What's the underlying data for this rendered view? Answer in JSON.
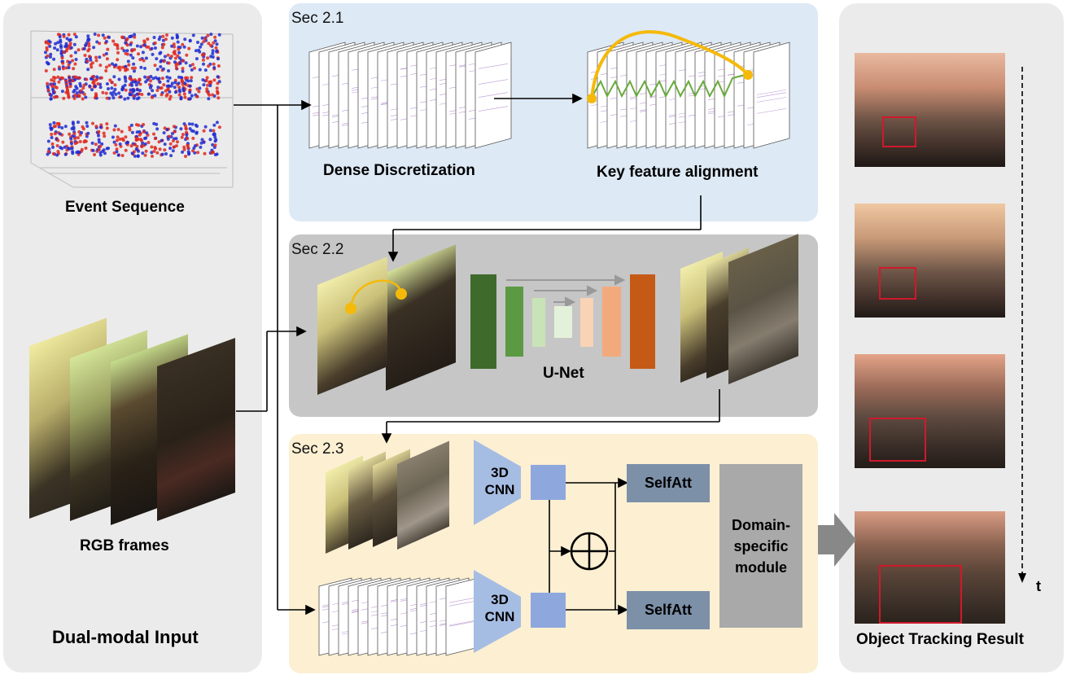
{
  "left_panel": {
    "event_label": "Event Sequence",
    "rgb_label": "RGB frames",
    "title": "Dual-modal Input"
  },
  "sec21": {
    "label": "Sec 2.1",
    "dense_label": "Dense Discretization",
    "align_label": "Key feature alignment"
  },
  "sec22": {
    "label": "Sec 2.2",
    "unet_label": "U-Net"
  },
  "sec23": {
    "label": "Sec 2.3",
    "cnn_top": "3D CNN",
    "cnn_bottom": "3D CNN",
    "selfatt_top": "SelfAtt",
    "selfatt_bottom": "SelfAtt",
    "domain_label": "Domain-specific module"
  },
  "right_panel": {
    "title": "Object Tracking Result",
    "time_label": "t"
  },
  "colors": {
    "panel_gray": "#ebebeb",
    "sec21_bg": "#dde9f5",
    "sec22_bg": "#c6c6c6",
    "sec23_bg": "#fcefd2",
    "unet_dark_green": "#3e6a2c",
    "unet_green": "#5b9a42",
    "unet_light_green": "#c9e3b8",
    "unet_pale_green": "#e4f1da",
    "unet_pale_orange": "#f9d3b6",
    "unet_orange": "#f2aa7c",
    "unet_dark_orange": "#c55a17",
    "cnn_blue": "#a6bde3",
    "feature_blue": "#8ea8de",
    "selfatt": "#7c90a8",
    "domain_gray": "#a9a9a9",
    "tracking_box": "#d0192b",
    "align_orange": "#f5b90a",
    "align_green": "#6aaa3b"
  }
}
